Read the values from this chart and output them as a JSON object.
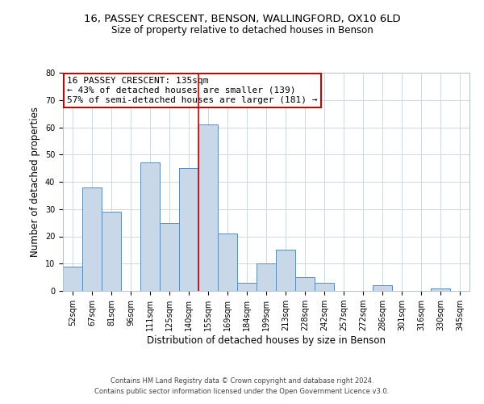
{
  "title1": "16, PASSEY CRESCENT, BENSON, WALLINGFORD, OX10 6LD",
  "title2": "Size of property relative to detached houses in Benson",
  "xlabel": "Distribution of detached houses by size in Benson",
  "ylabel": "Number of detached properties",
  "categories": [
    "52sqm",
    "67sqm",
    "81sqm",
    "96sqm",
    "111sqm",
    "125sqm",
    "140sqm",
    "155sqm",
    "169sqm",
    "184sqm",
    "199sqm",
    "213sqm",
    "228sqm",
    "242sqm",
    "257sqm",
    "272sqm",
    "286sqm",
    "301sqm",
    "316sqm",
    "330sqm",
    "345sqm"
  ],
  "values": [
    9,
    38,
    29,
    0,
    47,
    25,
    45,
    61,
    21,
    3,
    10,
    15,
    5,
    3,
    0,
    0,
    2,
    0,
    0,
    1,
    0
  ],
  "bar_color": "#c8d8e8",
  "bar_edge_color": "#5b8db8",
  "annotation_title": "16 PASSEY CRESCENT: 135sqm",
  "annotation_line1": "← 43% of detached houses are smaller (139)",
  "annotation_line2": "57% of semi-detached houses are larger (181) →",
  "annotation_box_color": "#ffffff",
  "annotation_border_color": "#cc0000",
  "red_line_x": 6.5,
  "ylim": [
    0,
    80
  ],
  "yticks": [
    0,
    10,
    20,
    30,
    40,
    50,
    60,
    70,
    80
  ],
  "footer1": "Contains HM Land Registry data © Crown copyright and database right 2024.",
  "footer2": "Contains public sector information licensed under the Open Government Licence v3.0.",
  "bg_color": "#ffffff",
  "grid_color": "#d0d8e0",
  "title1_fontsize": 9.5,
  "title2_fontsize": 8.5,
  "ylabel_fontsize": 8.5,
  "xlabel_fontsize": 8.5,
  "tick_fontsize": 7,
  "annotation_fontsize": 8,
  "footer_fontsize": 6
}
